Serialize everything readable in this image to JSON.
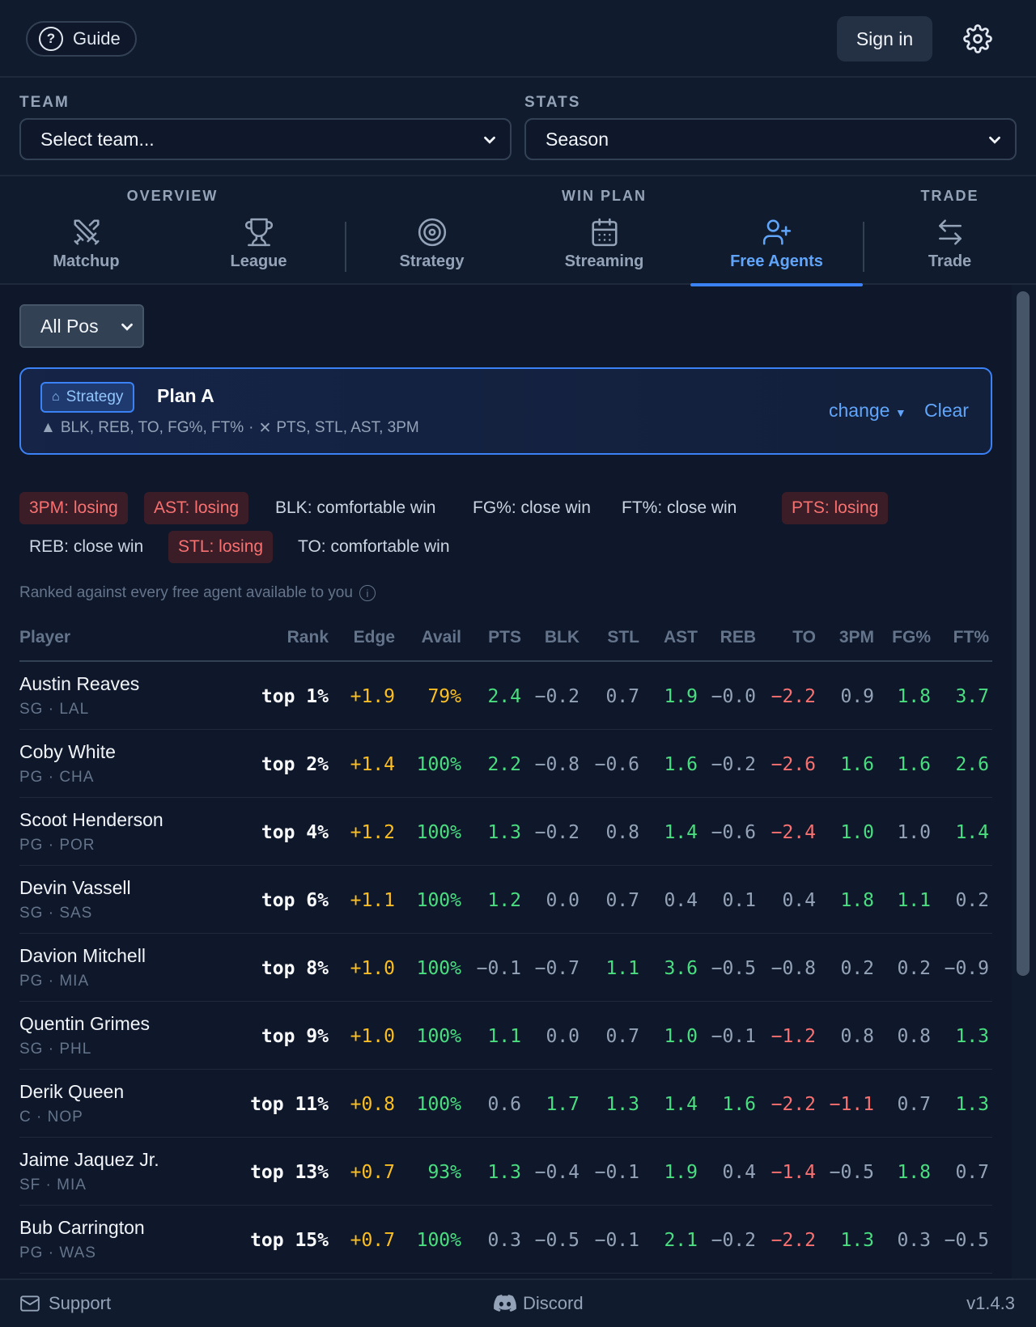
{
  "topbar": {
    "guide_label": "Guide",
    "signin_label": "Sign in"
  },
  "selectors": {
    "team_label": "TEAM",
    "team_value": "Select team...",
    "stats_label": "STATS",
    "stats_value": "Season"
  },
  "nav": {
    "groups": {
      "overview": "OVERVIEW",
      "win_plan": "WIN PLAN",
      "trade": "TRADE"
    },
    "items": {
      "matchup": "Matchup",
      "league": "League",
      "strategy": "Strategy",
      "streaming": "Streaming",
      "free_agents": "Free Agents",
      "trade": "Trade"
    },
    "active": "Free Agents"
  },
  "filters": {
    "position": "All Pos"
  },
  "plan": {
    "badge": "Strategy",
    "name": "Plan A",
    "up_cats": "BLK, REB, TO, FG%, FT%",
    "sep": "·",
    "down_cats": "PTS, STL, AST, 3PM",
    "change_label": "change",
    "clear_label": "Clear"
  },
  "category_status": [
    {
      "text": "3PM: losing",
      "state": "losing"
    },
    {
      "text": "AST: losing",
      "state": "losing"
    },
    {
      "text": "BLK: comfortable win",
      "state": "win"
    },
    {
      "text": "FG%: close win",
      "state": "win"
    },
    {
      "text": "FT%: close win",
      "state": "win"
    },
    {
      "text": "PTS: losing",
      "state": "losing"
    },
    {
      "text": "REB: close win",
      "state": "win"
    },
    {
      "text": "STL: losing",
      "state": "losing"
    },
    {
      "text": "TO: comfortable win",
      "state": "win"
    }
  ],
  "ranked_note": "Ranked against every free agent available to you",
  "table": {
    "headers": [
      "Player",
      "Rank",
      "Edge",
      "Avail",
      "PTS",
      "BLK",
      "STL",
      "AST",
      "REB",
      "TO",
      "3PM",
      "FG%",
      "FT%"
    ],
    "rows": [
      {
        "name": "Austin Reaves",
        "meta": "SG · LAL",
        "rank": "top 1%",
        "edge": "+1.9",
        "avail": "79%",
        "stats": [
          "2.4",
          "−0.2",
          "0.7",
          "1.9",
          "−0.0",
          "−2.2",
          "0.9",
          "1.8",
          "3.7"
        ]
      },
      {
        "name": "Coby White",
        "meta": "PG · CHA",
        "rank": "top 2%",
        "edge": "+1.4",
        "avail": "100%",
        "stats": [
          "2.2",
          "−0.8",
          "−0.6",
          "1.6",
          "−0.2",
          "−2.6",
          "1.6",
          "1.6",
          "2.6"
        ]
      },
      {
        "name": "Scoot Henderson",
        "meta": "PG · POR",
        "rank": "top 4%",
        "edge": "+1.2",
        "avail": "100%",
        "stats": [
          "1.3",
          "−0.2",
          "0.8",
          "1.4",
          "−0.6",
          "−2.4",
          "1.0",
          "1.0",
          "1.4"
        ]
      },
      {
        "name": "Devin Vassell",
        "meta": "SG · SAS",
        "rank": "top 6%",
        "edge": "+1.1",
        "avail": "100%",
        "stats": [
          "1.2",
          "0.0",
          "0.7",
          "0.4",
          "0.1",
          "0.4",
          "1.8",
          "1.1",
          "0.2"
        ]
      },
      {
        "name": "Davion Mitchell",
        "meta": "PG · MIA",
        "rank": "top 8%",
        "edge": "+1.0",
        "avail": "100%",
        "stats": [
          "−0.1",
          "−0.7",
          "1.1",
          "3.6",
          "−0.5",
          "−0.8",
          "0.2",
          "0.2",
          "−0.9"
        ]
      },
      {
        "name": "Quentin Grimes",
        "meta": "SG · PHL",
        "rank": "top 9%",
        "edge": "+1.0",
        "avail": "100%",
        "stats": [
          "1.1",
          "0.0",
          "0.7",
          "1.0",
          "−0.1",
          "−1.2",
          "0.8",
          "0.8",
          "1.3"
        ]
      },
      {
        "name": "Derik Queen",
        "meta": "C · NOP",
        "rank": "top 11%",
        "edge": "+0.8",
        "avail": "100%",
        "stats": [
          "0.6",
          "1.7",
          "1.3",
          "1.4",
          "1.6",
          "−2.2",
          "−1.1",
          "0.7",
          "1.3"
        ]
      },
      {
        "name": "Jaime Jaquez Jr.",
        "meta": "SF · MIA",
        "rank": "top 13%",
        "edge": "+0.7",
        "avail": "93%",
        "stats": [
          "1.3",
          "−0.4",
          "−0.1",
          "1.9",
          "0.4",
          "−1.4",
          "−0.5",
          "1.8",
          "0.7"
        ]
      },
      {
        "name": "Bub Carrington",
        "meta": "PG · WAS",
        "rank": "top 15%",
        "edge": "+0.7",
        "avail": "100%",
        "stats": [
          "0.3",
          "−0.5",
          "−0.1",
          "2.1",
          "−0.2",
          "−2.2",
          "1.3",
          "0.3",
          "−0.5"
        ]
      }
    ]
  },
  "stat_colors": [
    [
      "pos",
      "neu",
      "neu",
      "pos",
      "neu",
      "neg",
      "neu",
      "pos",
      "pos"
    ],
    [
      "pos",
      "neu",
      "neu",
      "pos",
      "neu",
      "neg",
      "pos",
      "pos",
      "pos"
    ],
    [
      "pos",
      "neu",
      "neu",
      "pos",
      "neu",
      "neg",
      "pos",
      "neu",
      "pos"
    ],
    [
      "pos",
      "neu",
      "neu",
      "neu",
      "neu",
      "neu",
      "pos",
      "pos",
      "neu"
    ],
    [
      "neu",
      "neu",
      "pos",
      "pos",
      "neu",
      "neu",
      "neu",
      "neu",
      "neu"
    ],
    [
      "pos",
      "neu",
      "neu",
      "pos",
      "neu",
      "neg",
      "neu",
      "neu",
      "pos"
    ],
    [
      "neu",
      "pos",
      "pos",
      "pos",
      "pos",
      "neg",
      "neg",
      "neu",
      "pos"
    ],
    [
      "pos",
      "neu",
      "neu",
      "pos",
      "neu",
      "neg",
      "neu",
      "pos",
      "neu"
    ],
    [
      "neu",
      "neu",
      "neu",
      "pos",
      "neu",
      "neg",
      "pos",
      "neu",
      "neu"
    ]
  ],
  "footer": {
    "support": "Support",
    "discord": "Discord",
    "version": "v1.4.3"
  },
  "colors": {
    "accent": "#3b82f6",
    "positive": "#4ade80",
    "negative": "#f87171",
    "edge": "#fbbf24"
  }
}
